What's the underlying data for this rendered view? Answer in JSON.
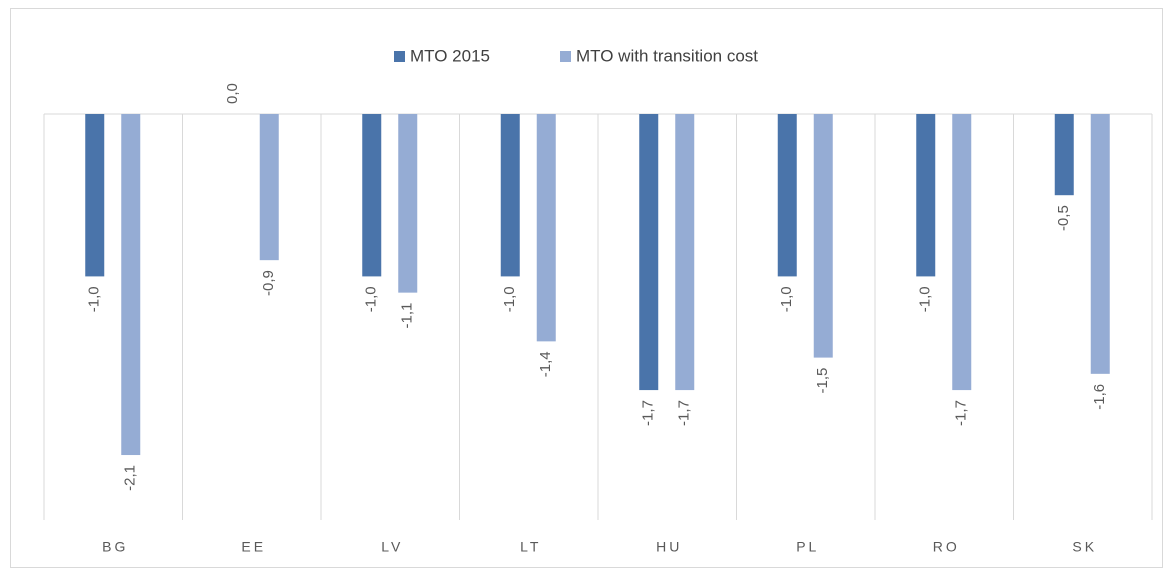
{
  "chart_data": {
    "type": "bar",
    "categories": [
      "BG",
      "EE",
      "LV",
      "LT",
      "HU",
      "PL",
      "RO",
      "SK"
    ],
    "series": [
      {
        "name": "MTO 2015",
        "color": "#4a74aa",
        "values": [
          -1.0,
          0.0,
          -1.0,
          -1.0,
          -1.7,
          -1.0,
          -1.0,
          -0.5
        ],
        "value_labels": [
          "-1,0",
          "0,0",
          "-1,0",
          "-1,0",
          "-1,7",
          "-1,0",
          "-1,0",
          "-0,5"
        ]
      },
      {
        "name": "MTO with transition cost",
        "color": "#95acd4",
        "values": [
          -2.1,
          -0.9,
          -1.1,
          -1.4,
          -1.7,
          -1.5,
          -1.7,
          -1.6
        ],
        "value_labels": [
          "-2,1",
          "-0,9",
          "-1,1",
          "-1,4",
          "-1,7",
          "-1,5",
          "-1,7",
          "-1,6"
        ]
      }
    ],
    "ylim": [
      -2.5,
      0
    ]
  }
}
